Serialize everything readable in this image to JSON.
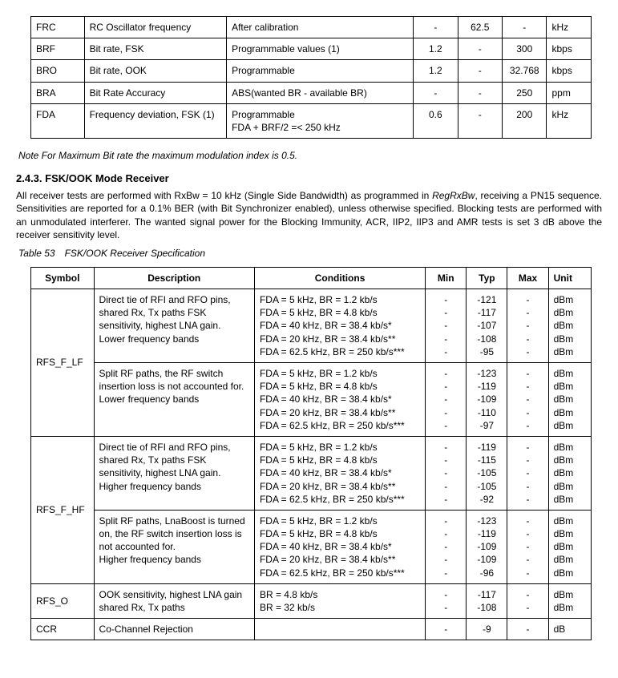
{
  "table1": {
    "rows": [
      {
        "sym": "FRC",
        "desc": "RC Oscillator frequency",
        "cond": "After calibration",
        "min": "-",
        "typ": "62.5",
        "max": "-",
        "unit": "kHz"
      },
      {
        "sym": "BRF",
        "desc": "Bit rate, FSK",
        "cond": "Programmable values (1)",
        "min": "1.2",
        "typ": "-",
        "max": "300",
        "unit": "kbps"
      },
      {
        "sym": "BRO",
        "desc": "Bit rate, OOK",
        "cond": "Programmable",
        "min": "1.2",
        "typ": "-",
        "max": "32.768",
        "unit": "kbps"
      },
      {
        "sym": "BRA",
        "desc": "Bit Rate Accuracy",
        "cond": "ABS(wanted BR - available BR)",
        "min": "-",
        "typ": "-",
        "max": "250",
        "unit": "ppm"
      },
      {
        "sym": "FDA",
        "desc": "Frequency deviation, FSK (1)",
        "cond": "Programmable\nFDA + BRF/2 =< 250 kHz",
        "min": "0.6",
        "typ": "-",
        "max": "200",
        "unit": "kHz"
      }
    ]
  },
  "note": "Note    For Maximum Bit rate the maximum modulation index is 0.5.",
  "section": "2.4.3.  FSK/OOK Mode Receiver",
  "paragraph": "All receiver tests are performed with RxBw = 10 kHz (Single Side Bandwidth) as programmed in RegRxBw, receiving a PN15 sequence. Sensitivities are reported for a 0.1% BER (with Bit Synchronizer enabled), unless otherwise specified. Blocking tests are performed with an unmodulated interferer. The wanted signal power for the Blocking Immunity, ACR, IIP2, IIP3 and AMR tests is set 3 dB above the receiver sensitivity level.",
  "caption": "Table 53 FSK/OOK Receiver Specification",
  "table2": {
    "head": {
      "sym": "Symbol",
      "desc": "Description",
      "cond": "Conditions",
      "min": "Min",
      "typ": "Typ",
      "max": "Max",
      "unit": "Unit"
    },
    "groups": [
      {
        "sym": "RFS_F_LF",
        "rows": [
          {
            "desc": "Direct tie of RFI and RFO pins, shared Rx, Tx paths FSK sensitivity, highest LNA gain.\nLower frequency bands",
            "cond": "FDA = 5 kHz,   BR = 1.2 kb/s\nFDA = 5 kHz,   BR = 4.8 kb/s\nFDA = 40 kHz, BR = 38.4 kb/s*\nFDA = 20 kHz, BR = 38.4 kb/s**\nFDA = 62.5 kHz, BR = 250 kb/s***",
            "min": "-\n-\n-\n-\n-",
            "typ": "-121\n-117\n-107\n-108\n-95",
            "max": "-\n-\n-\n-\n-",
            "unit": "dBm\ndBm\ndBm\ndBm\ndBm"
          },
          {
            "desc": "Split RF paths, the RF switch insertion loss is not accounted for.\nLower frequency bands",
            "cond": "FDA = 5 kHz,   BR = 1.2 kb/s\nFDA = 5 kHz,   BR = 4.8 kb/s\nFDA = 40 kHz, BR = 38.4 kb/s*\nFDA = 20 kHz, BR = 38.4 kb/s**\nFDA = 62.5 kHz, BR = 250 kb/s***",
            "min": "-\n-\n-\n-\n-",
            "typ": "-123\n-119\n-109\n-110\n-97",
            "max": "-\n-\n-\n-\n-",
            "unit": "dBm\ndBm\ndBm\ndBm\ndBm"
          }
        ]
      },
      {
        "sym": "RFS_F_HF",
        "rows": [
          {
            "desc": "Direct tie of RFI and RFO pins, shared Rx, Tx paths FSK sensitivity, highest LNA gain.\nHigher frequency bands",
            "cond": "FDA = 5 kHz,   BR = 1.2 kb/s\nFDA = 5 kHz,   BR = 4.8 kb/s\nFDA = 40 kHz, BR = 38.4 kb/s*\nFDA = 20 kHz, BR = 38.4 kb/s**\nFDA = 62.5 kHz, BR = 250 kb/s***",
            "min": "-\n-\n-\n-\n-",
            "typ": "-119\n-115\n-105\n-105\n-92",
            "max": "-\n-\n-\n-\n-",
            "unit": "dBm\ndBm\ndBm\ndBm\ndBm"
          },
          {
            "desc": "Split RF paths, LnaBoost is turned on, the RF switch insertion loss is not accounted for.\nHigher frequency bands",
            "cond": "FDA = 5 kHz,   BR = 1.2 kb/s\nFDA = 5 kHz,   BR = 4.8 kb/s\nFDA = 40 kHz, BR = 38.4 kb/s*\nFDA = 20 kHz, BR = 38.4 kb/s**\nFDA = 62.5 kHz, BR = 250 kb/s***",
            "min": "-\n-\n-\n-\n-",
            "typ": "-123\n-119\n-109\n-109\n-96",
            "max": "-\n-\n-\n-\n-",
            "unit": "dBm\ndBm\ndBm\ndBm\ndBm"
          }
        ]
      },
      {
        "sym": "RFS_O",
        "rows": [
          {
            "desc": "OOK sensitivity, highest LNA gain shared Rx, Tx paths",
            "cond": "BR = 4.8 kb/s\nBR = 32 kb/s",
            "min": "-\n-",
            "typ": "-117\n-108",
            "max": "-\n-",
            "unit": "dBm\ndBm"
          }
        ]
      },
      {
        "sym": "CCR",
        "rows": [
          {
            "desc": "Co-Channel Rejection",
            "cond": "",
            "min": "-",
            "typ": "-9",
            "max": "-",
            "unit": "dB"
          }
        ]
      }
    ]
  }
}
